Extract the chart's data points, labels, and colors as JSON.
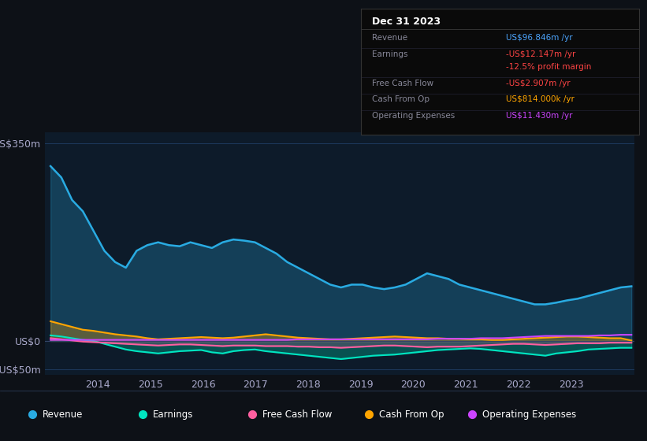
{
  "bg_color": "#0d1117",
  "plot_bg_color": "#0d1b2a",
  "grid_color": "#1e3a5f",
  "title_text": "Dec 31 2023",
  "info_rows": [
    {
      "label": "Revenue",
      "value": "US$96.846m /yr",
      "color": "#4da6ff"
    },
    {
      "label": "Earnings",
      "value": "-US$12.147m /yr",
      "color": "#ff4444"
    },
    {
      "label": "",
      "value": "-12.5% profit margin",
      "color": "#ff4444"
    },
    {
      "label": "Free Cash Flow",
      "value": "-US$2.907m /yr",
      "color": "#ff4444"
    },
    {
      "label": "Cash From Op",
      "value": "US$814.000k /yr",
      "color": "#ffa500"
    },
    {
      "label": "Operating Expenses",
      "value": "US$11.430m /yr",
      "color": "#cc44ff"
    }
  ],
  "ylim": [
    -60,
    370
  ],
  "xlim": [
    2013.0,
    2024.2
  ],
  "ytick_labels": [
    "-US$50m",
    "US$0",
    "US$350m"
  ],
  "xtick_labels": [
    "2014",
    "2015",
    "2016",
    "2017",
    "2018",
    "2019",
    "2020",
    "2021",
    "2022",
    "2023"
  ],
  "legend": [
    {
      "label": "Revenue",
      "color": "#29abe2"
    },
    {
      "label": "Earnings",
      "color": "#00e5c0"
    },
    {
      "label": "Free Cash Flow",
      "color": "#ff5fa0"
    },
    {
      "label": "Cash From Op",
      "color": "#ffa500"
    },
    {
      "label": "Operating Expenses",
      "color": "#cc44ff"
    }
  ],
  "revenue": [
    310,
    290,
    250,
    230,
    195,
    160,
    140,
    130,
    160,
    170,
    175,
    170,
    168,
    175,
    170,
    165,
    175,
    180,
    178,
    175,
    165,
    155,
    140,
    130,
    120,
    110,
    100,
    95,
    100,
    100,
    95,
    92,
    95,
    100,
    110,
    120,
    115,
    110,
    100,
    95,
    90,
    85,
    80,
    75,
    70,
    65,
    65,
    68,
    72,
    75,
    80,
    85,
    90,
    95,
    97
  ],
  "earnings": [
    10,
    8,
    5,
    2,
    0,
    -5,
    -10,
    -15,
    -18,
    -20,
    -22,
    -20,
    -18,
    -17,
    -16,
    -20,
    -22,
    -18,
    -16,
    -15,
    -18,
    -20,
    -22,
    -24,
    -26,
    -28,
    -30,
    -32,
    -30,
    -28,
    -26,
    -25,
    -24,
    -22,
    -20,
    -18,
    -16,
    -15,
    -14,
    -13,
    -14,
    -16,
    -18,
    -20,
    -22,
    -24,
    -26,
    -22,
    -20,
    -18,
    -15,
    -14,
    -13,
    -12,
    -12
  ],
  "fcf": [
    5,
    3,
    1,
    -1,
    -2,
    -3,
    -4,
    -5,
    -6,
    -7,
    -8,
    -7,
    -6,
    -6,
    -7,
    -8,
    -9,
    -8,
    -8,
    -8,
    -9,
    -9,
    -9,
    -10,
    -10,
    -11,
    -11,
    -12,
    -11,
    -10,
    -9,
    -8,
    -8,
    -9,
    -10,
    -11,
    -10,
    -10,
    -10,
    -9,
    -8,
    -7,
    -6,
    -5,
    -5,
    -6,
    -7,
    -6,
    -5,
    -4,
    -4,
    -4,
    -3,
    -3,
    -3
  ],
  "cashfromop": [
    35,
    30,
    25,
    20,
    18,
    15,
    12,
    10,
    8,
    5,
    3,
    4,
    5,
    6,
    7,
    6,
    5,
    6,
    8,
    10,
    12,
    10,
    8,
    6,
    5,
    4,
    3,
    3,
    4,
    5,
    6,
    7,
    8,
    7,
    6,
    5,
    5,
    4,
    4,
    3,
    3,
    2,
    2,
    3,
    4,
    5,
    6,
    7,
    8,
    8,
    7,
    6,
    5,
    5,
    1
  ],
  "opex": [
    2,
    2,
    2,
    2,
    2,
    2,
    2,
    2,
    2,
    2,
    2,
    2,
    2,
    2,
    2,
    2,
    2,
    2,
    2,
    2,
    2,
    2,
    2,
    3,
    3,
    3,
    3,
    3,
    3,
    3,
    3,
    3,
    3,
    3,
    3,
    3,
    4,
    4,
    4,
    4,
    5,
    5,
    5,
    6,
    7,
    8,
    9,
    9,
    9,
    9,
    9,
    10,
    10,
    11,
    11
  ]
}
